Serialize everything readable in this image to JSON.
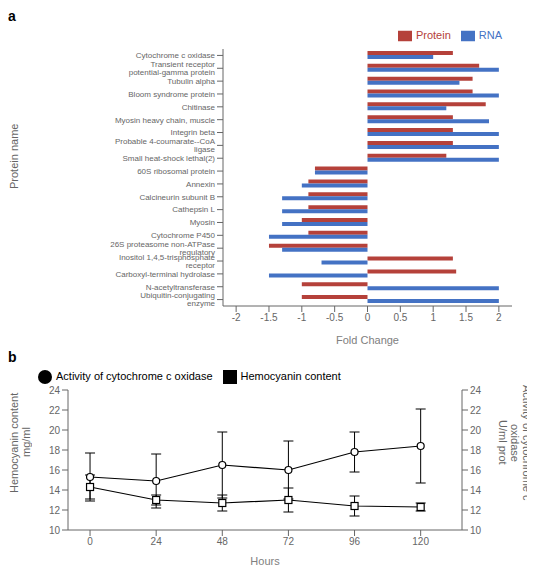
{
  "chart_data": [
    {
      "type": "bar",
      "title": "a",
      "orientation": "horizontal",
      "categories": [
        "Cytochrome c oxidase",
        "Transient receptor potential-gamma protein",
        "Tubulin alpha",
        "Bloom syndrome protein",
        "Chitinase",
        "Myosin heavy chain, muscle",
        "Integrin beta",
        "Probable 4-coumarate--CoA ligase",
        "Small heat-shock lethal(2)",
        "60S ribosomal protein",
        "Annexin",
        "Calcineurin subunit B",
        "Cathepsin L",
        "Myosin",
        "Cytochrome P450",
        "26S proteasome non-ATPase regulatory",
        "Inositol 1,4,5-trisphosphate receptor",
        "Carboxyl-terminal hydrolase",
        "N-acetyltransferase",
        "Ubiquitin-conjugating enzyme"
      ],
      "series": [
        {
          "name": "Protein",
          "color": "#b5413a",
          "values": [
            1.3,
            1.7,
            1.6,
            1.6,
            1.8,
            1.3,
            1.3,
            1.3,
            1.2,
            -0.8,
            -0.9,
            -0.9,
            -0.9,
            -1.0,
            -0.9,
            -1.5,
            1.3,
            1.35,
            -1.0,
            -1.0
          ]
        },
        {
          "name": "RNA",
          "color": "#4472c4",
          "values": [
            1.0,
            2.0,
            1.4,
            2.0,
            1.2,
            1.85,
            2.0,
            2.0,
            2.0,
            -0.8,
            -1.0,
            -1.3,
            -1.3,
            -1.3,
            -1.5,
            -1.3,
            -0.7,
            -1.5,
            2.0,
            2.0
          ]
        }
      ],
      "xlim": [
        -2.2,
        2.2
      ],
      "xticks": [
        -2,
        -1.5,
        -1,
        -0.5,
        0,
        0.5,
        1,
        1.5,
        2
      ],
      "xlabel": "Fold Change",
      "ylabel": "Protein name",
      "legend": "upper right",
      "grid": false
    },
    {
      "type": "line",
      "title": "b",
      "x": [
        0,
        24,
        48,
        72,
        96,
        120
      ],
      "series": [
        {
          "name": "Hemocyanin content",
          "color": "black",
          "marker": "square",
          "line_style": "solid",
          "values": [
            14.3,
            13.0,
            12.7,
            13.0,
            12.4,
            12.3
          ],
          "errors": [
            1.2,
            0.5,
            0.8,
            1.2,
            1.0,
            0.4
          ]
        },
        {
          "name": "Activity of cytochrome c oxidase",
          "color": "black",
          "marker": "circle",
          "line_style": "solid",
          "axis": "y2",
          "values": [
            15.3,
            14.9,
            16.5,
            16.0,
            17.8,
            18.4
          ],
          "errors": [
            2.4,
            2.7,
            3.3,
            2.9,
            2.0,
            3.7
          ]
        }
      ],
      "xlim": [
        -8,
        135
      ],
      "xticks": [
        0,
        24,
        48,
        72,
        96,
        120
      ],
      "ylim": [
        10,
        24
      ],
      "yticks": [
        10,
        12,
        14,
        16,
        18,
        20,
        22,
        24
      ],
      "y2lim": [
        10,
        24
      ],
      "y2ticks": [
        10,
        12,
        14,
        16,
        18,
        20,
        22,
        24
      ],
      "xlabel": "Hours",
      "ylabel": "Hemocyanin content\nmg/ml",
      "y2label": "Activity of cytochrome c oxidase\nU/ml prot",
      "legend": "upper left",
      "grid": false
    }
  ]
}
